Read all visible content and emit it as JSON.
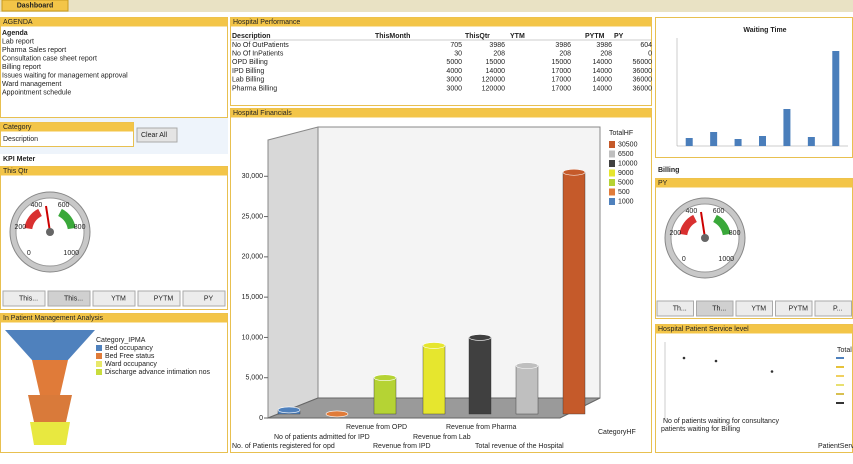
{
  "tab": "Dashboard",
  "agenda": {
    "title": "AGENDA",
    "items": [
      "Agenda",
      "Lab report",
      "Pharma Sales report",
      "Consultation case sheet report",
      "Billing report",
      "Issues waiting for management approval",
      "Ward management",
      "Appointment schedule"
    ]
  },
  "category": {
    "title": "Category",
    "field": "Description",
    "clear": "Clear All"
  },
  "kpi_label": "KPI Meter",
  "this_qtr": {
    "title": "This Qtr",
    "gauge_ticks": [
      0,
      200,
      400,
      600,
      800,
      1000
    ],
    "buttons": [
      "This...",
      "This...",
      "YTM",
      "PYTM",
      "PY"
    ]
  },
  "billing_label": "Billing",
  "py": {
    "title": "PY",
    "gauge_ticks": [
      0,
      200,
      400,
      600,
      800,
      1000
    ],
    "buttons": [
      "Th...",
      "Th...",
      "YTM",
      "PYTM",
      "P..."
    ]
  },
  "ipma": {
    "title": "In Patient Management Analysis",
    "legend_title": "Category_IPMA",
    "items": [
      {
        "name": "Bed occupancy",
        "color": "#4f81bd"
      },
      {
        "name": "Bed Free status",
        "color": "#e07b39"
      },
      {
        "name": "Ward occupancy",
        "color": "#e8e86a"
      },
      {
        "name": "Discharge advance intimation nos",
        "color": "#c8dc3c"
      }
    ]
  },
  "performance": {
    "title": "Hospital Performance",
    "columns": [
      "Description",
      "ThisMonth",
      "ThisQtr",
      "YTM",
      "PYTM",
      "PY"
    ],
    "rows": [
      [
        "No Of OutPatients",
        705,
        3986,
        3986,
        3986,
        604
      ],
      [
        "No Of InPatients",
        30,
        208,
        208,
        208,
        0
      ],
      [
        "OPD Billing",
        5000,
        15000,
        15000,
        14000,
        56000
      ],
      [
        "IPD Billing",
        4000,
        14000,
        17000,
        14000,
        36000
      ],
      [
        "Lab Billing",
        3000,
        120000,
        17000,
        14000,
        36000
      ],
      [
        "Pharma Billing",
        3000,
        120000,
        17000,
        14000,
        36000
      ]
    ]
  },
  "chart_data": [
    {
      "type": "bar",
      "title": "Hospital Financials",
      "x_label": "CategoryHF",
      "legend_title": "TotalHF",
      "categories": [
        "No. of Patients registered for opd",
        "No of patients admitted for IPD",
        "Revenue from OPD",
        "Revenue from IPD",
        "Revenue from Lab",
        "Revenue from Pharma",
        "Total revenue of the Hospital"
      ],
      "values": [
        1000,
        500,
        5000,
        9000,
        10000,
        6500,
        30500
      ],
      "colors": [
        "#4f81bd",
        "#e07b39",
        "#b5d334",
        "#e6e62e",
        "#404040",
        "#bfbfbf",
        "#c55a2a"
      ],
      "ylim": [
        0,
        35000
      ],
      "yticks": [
        0,
        {
          "value": 5000,
          "label": "5,000"
        },
        {
          "value": 10000,
          "label": "10,000"
        },
        {
          "value": 15000,
          "label": "15,000"
        },
        {
          "value": 20000,
          "label": "20,000"
        },
        {
          "value": 25000,
          "label": "25,000"
        },
        {
          "value": 30000,
          "label": "30,000"
        }
      ]
    },
    {
      "type": "bar",
      "title": "Waiting Time",
      "color": "#4a7ebb",
      "categories": [
        null,
        null,
        null,
        null,
        null,
        null,
        null
      ],
      "values": [
        8,
        14,
        7,
        10,
        37,
        9,
        95
      ],
      "ylim": [
        0,
        100
      ]
    },
    {
      "type": "scatter",
      "title": "Hospital Patient Service level",
      "legend_title": "Total",
      "category_labels": [
        "No of patients waiting for consultancy",
        "patients waiting for Billing",
        "PatientServ"
      ],
      "series": [
        {
          "color": "#333333",
          "x": [
            1,
            3,
            6.5
          ],
          "values": [
            8,
            7.6,
            6.2
          ]
        }
      ],
      "xlim": [
        0,
        10
      ],
      "ylim": [
        0,
        10
      ]
    }
  ]
}
